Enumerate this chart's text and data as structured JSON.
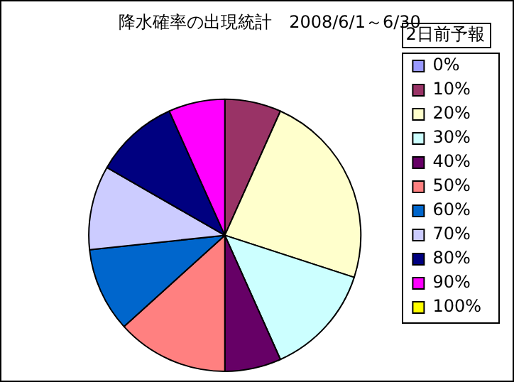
{
  "chart_data": {
    "type": "pie",
    "title": "降水確率の出現統計　2008/6/1～6/30",
    "legend_title": "2日前予報",
    "legend": "right",
    "categories": [
      "0%",
      "10%",
      "20%",
      "30%",
      "40%",
      "50%",
      "60%",
      "70%",
      "80%",
      "90%",
      "100%"
    ],
    "values": [
      0,
      6.7,
      23.3,
      13.3,
      6.7,
      13.3,
      10,
      10,
      10,
      6.7,
      0
    ],
    "colors": [
      "#9999ff",
      "#993366",
      "#ffffcc",
      "#ccffff",
      "#660066",
      "#ff8080",
      "#0066cc",
      "#ccccff",
      "#000080",
      "#ff00ff",
      "#ffff00"
    ]
  }
}
